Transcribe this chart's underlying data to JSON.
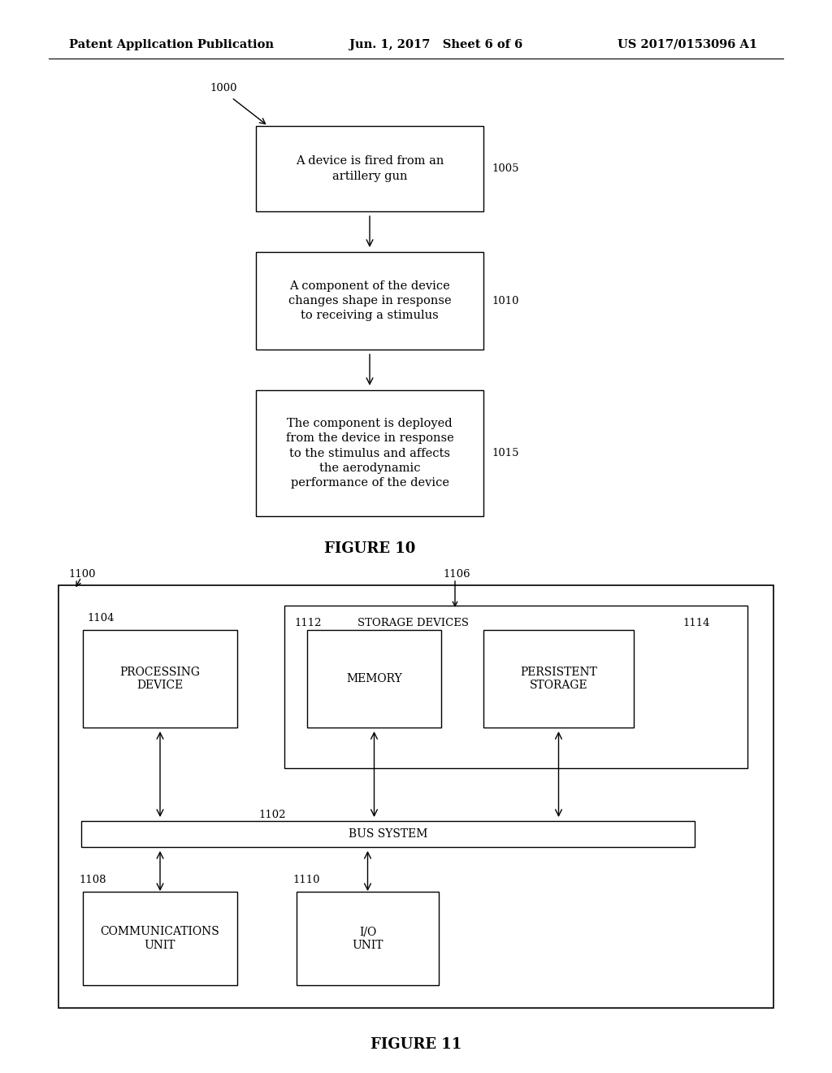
{
  "bg_color": "#ffffff",
  "header_left": "Patent Application Publication",
  "header_mid": "Jun. 1, 2017   Sheet 6 of 6",
  "header_right": "US 2017/0153096 A1",
  "fig10_label": "FIGURE 10",
  "fig11_label": "FIGURE 11",
  "fig10_ref": "1000",
  "fig10_boxes": [
    {
      "text": "A device is fired from an\nartillery gun",
      "ref": "1005"
    },
    {
      "text": "A component of the device\nchanges shape in response\nto receiving a stimulus",
      "ref": "1010"
    },
    {
      "text": "The component is deployed\nfrom the device in response\nto the stimulus and affects\nthe aerodynamic\nperformance of the device",
      "ref": "1015"
    }
  ],
  "fig11_ref_outer": "1100",
  "fig11_ref_storage_group": "1106",
  "fig11_storage_label": "STORAGE DEVICES",
  "fig11_bus_label": "BUS SYSTEM",
  "fig11_ref_bus": "1102",
  "fig11_boxes": [
    {
      "label": "PROCESSING\nDEVICE",
      "ref": "1104"
    },
    {
      "label": "MEMORY",
      "ref": "1112"
    },
    {
      "label": "PERSISTENT\nSTORAGE",
      "ref": "1114"
    },
    {
      "label": "COMMUNICATIONS\nUNIT",
      "ref": "1108"
    },
    {
      "label": "I/O\nUNIT",
      "ref": "1110"
    }
  ],
  "font_family": "DejaVu Serif",
  "header_fontsize": 10.5,
  "body_fontsize": 10.5,
  "ref_fontsize": 9.5,
  "figure_label_fontsize": 13
}
